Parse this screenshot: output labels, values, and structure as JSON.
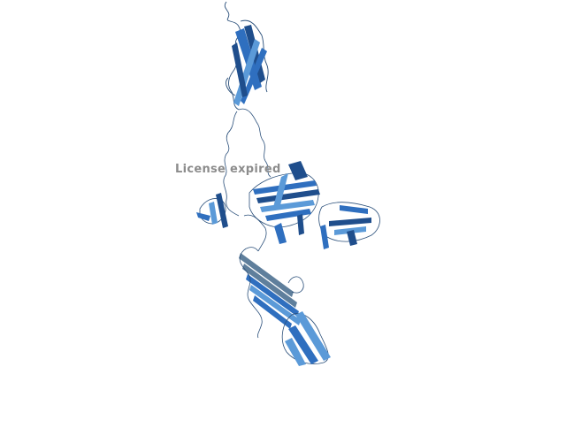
{
  "viewer": {
    "watermark_text": "License expired",
    "colors": {
      "background": "#ffffff",
      "ribbon_dark": "#1f4e8c",
      "ribbon_mid": "#2f6fbf",
      "ribbon_light": "#5b9ad8",
      "ribbon_grey": "#5f7f9c",
      "coil": "#2a4f7a",
      "watermark": "#8c8c8c"
    }
  }
}
